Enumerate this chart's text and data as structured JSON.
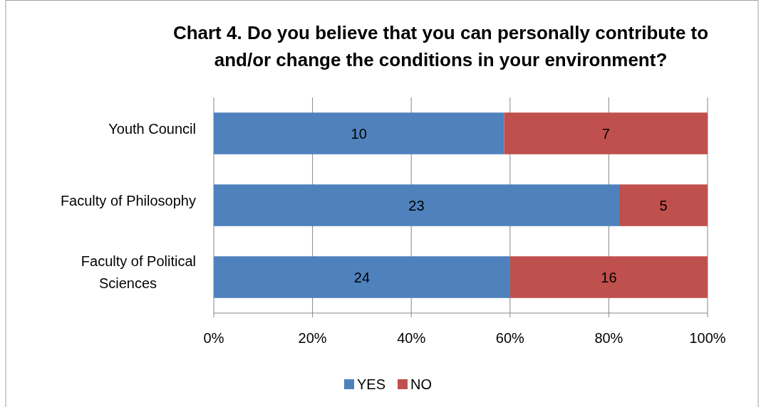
{
  "chart_data": {
    "type": "bar",
    "orientation": "horizontal",
    "stacked": true,
    "title": "Chart 4. Do you believe that you can personally contribute to and/or change the conditions in your environment?",
    "categories": [
      "Youth Council",
      "Faculty of Philosophy",
      "Faculty of Political Sciences"
    ],
    "series": [
      {
        "name": "YES",
        "color": "#4f81bd",
        "values": [
          58.8,
          82.1,
          60
        ]
      },
      {
        "name": "NO",
        "color": "#c0504d",
        "values": [
          41.2,
          17.9,
          40
        ]
      }
    ],
    "annotations": [
      "10",
      "7",
      "23",
      "5",
      "24",
      "16"
    ],
    "xlim": [
      0,
      100
    ],
    "xticks": [
      {
        "value": 0,
        "label": "0%"
      },
      {
        "value": 20,
        "label": "20%"
      },
      {
        "value": 40,
        "label": "40%"
      },
      {
        "value": 60,
        "label": "60%"
      },
      {
        "value": 80,
        "label": "80%"
      },
      {
        "value": 100,
        "label": "100%"
      }
    ],
    "grid": "x",
    "legend": "bottom"
  }
}
